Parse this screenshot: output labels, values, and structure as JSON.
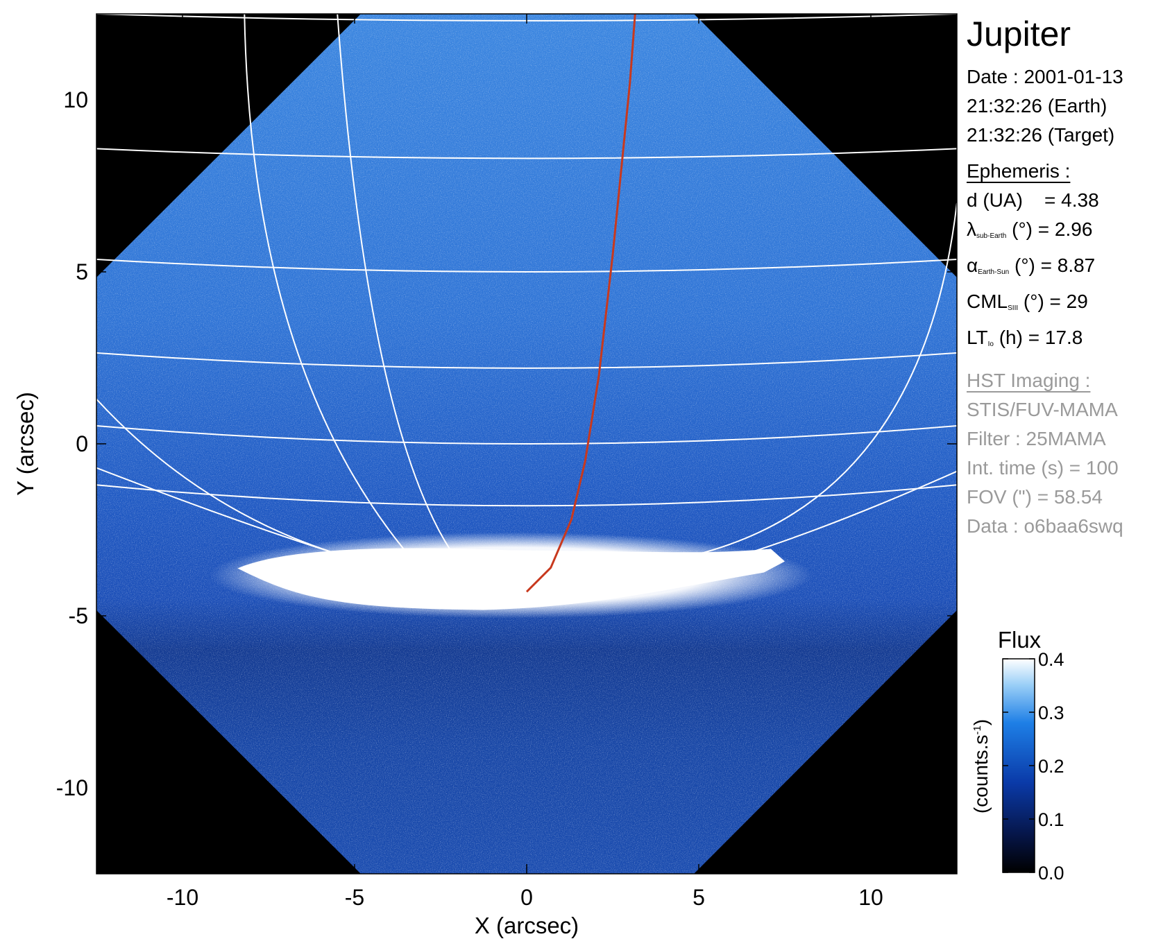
{
  "chart_data": {
    "type": "heatmap",
    "title": "Jupiter",
    "xlabel": "X (arcsec)",
    "ylabel": "Y (arcsec)",
    "xlim": [
      -12.5,
      12.5
    ],
    "ylim": [
      -12.5,
      12.5
    ],
    "x_ticks": [
      -10,
      -5,
      0,
      5,
      10
    ],
    "y_ticks": [
      -10,
      -5,
      0,
      5,
      10
    ],
    "x_tick_labels": [
      "-10",
      "-5",
      "0",
      "5",
      "10"
    ],
    "y_tick_labels": [
      "-10",
      "-5",
      "0",
      "5",
      "10"
    ],
    "latitude_lines_y_at_center": [
      12.3,
      8.3,
      5.0,
      2.2,
      0.0,
      -1.8
    ],
    "longitude_lines_x_at_top": [
      -8.2,
      -5.5,
      3.2
    ],
    "footprint_line": {
      "color": "#c8391e",
      "points": [
        [
          0.0,
          -4.3
        ],
        [
          0.7,
          -3.6
        ],
        [
          1.3,
          -2.2
        ],
        [
          1.7,
          -0.5
        ],
        [
          2.1,
          2.0
        ],
        [
          2.5,
          5.5
        ],
        [
          2.8,
          8.5
        ],
        [
          3.0,
          10.5
        ],
        [
          3.15,
          12.5
        ]
      ]
    },
    "auroral_oval": {
      "x_range": [
        -8.4,
        7.5
      ],
      "y_center": -3.7
    },
    "colorbar": {
      "label": "Flux",
      "unit": "(counts.s",
      "unit_superscript": "-1",
      "unit_close": ")",
      "range": [
        0.0,
        0.4
      ],
      "ticks": [
        0.0,
        0.1,
        0.2,
        0.3,
        0.4
      ],
      "tick_labels": [
        "0.0",
        "0.1",
        "0.2",
        "0.3",
        "0.4"
      ],
      "colors": [
        "#000000",
        "#06164a",
        "#0a3aa8",
        "#1e7fe6",
        "#9cd0f7",
        "#ffffff"
      ]
    }
  },
  "info": {
    "title": "Jupiter",
    "date_line": "Date : 2001-01-13",
    "time_earth": "21:32:26 (Earth)",
    "time_target": "21:32:26 (Target)",
    "ephemeris": {
      "header": "Ephemeris :",
      "d_label": "d (UA)",
      "d_value": "= 4.38",
      "lambda_symbol": "λ",
      "lambda_sub": "sub-Earth",
      "lambda_value": "(°) = 2.96",
      "alpha_symbol": "α",
      "alpha_sub": "Earth-Sun",
      "alpha_value": "(°) = 8.87",
      "cml_label": "CML",
      "cml_sub": "SIII",
      "cml_value": "(°) = 29",
      "lt_label": "LT",
      "lt_sub": "Io",
      "lt_value": "(h) = 17.8"
    },
    "hst": {
      "header": "HST Imaging :",
      "instrument": "STIS/FUV-MAMA",
      "filter": "Filter : 25MAMA",
      "int_time": "Int. time (s) = 100",
      "fov": "FOV (\") = 58.54",
      "data": "Data : o6baa6swq"
    }
  }
}
